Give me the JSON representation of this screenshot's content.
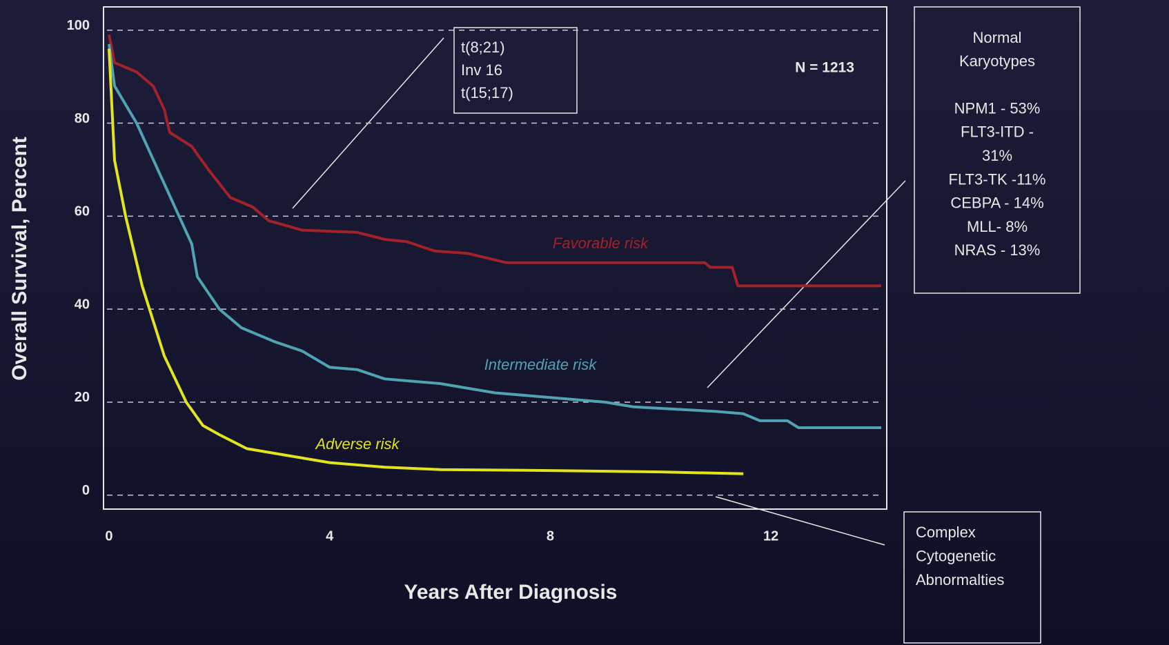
{
  "chart_data": {
    "type": "line",
    "xlabel": "Years After Diagnosis",
    "ylabel": "Overall Survival, Percent",
    "xlim": [
      -0.1,
      14.1
    ],
    "ylim": [
      -3,
      105
    ],
    "xticks": [
      0,
      4,
      8,
      12
    ],
    "yticks": [
      0,
      20,
      40,
      60,
      80,
      100
    ],
    "grid": true,
    "series": [
      {
        "name": "Favorable risk",
        "color": "#a3222a",
        "x": [
          0,
          0.1,
          0.5,
          0.8,
          1.0,
          1.1,
          1.5,
          1.8,
          2.0,
          2.2,
          2.6,
          2.9,
          3.5,
          4.5,
          5.0,
          5.4,
          5.9,
          6.5,
          7.2,
          8.0,
          10.8,
          10.9,
          11.3,
          11.4,
          14.0
        ],
        "values": [
          99,
          93,
          91,
          88,
          83,
          78,
          75,
          70,
          67,
          64,
          62,
          59,
          57,
          56.5,
          55,
          54.5,
          52.5,
          52,
          50,
          50,
          50,
          49,
          49,
          45,
          45
        ]
      },
      {
        "name": "Intermediate risk",
        "color": "#4fa3b3",
        "x": [
          0,
          0.1,
          0.5,
          1.0,
          1.5,
          1.6,
          2.0,
          2.4,
          3.0,
          3.5,
          4.0,
          4.5,
          5.0,
          6.0,
          7.0,
          8.0,
          9.0,
          9.5,
          11.0,
          11.5,
          11.8,
          12.3,
          12.5,
          14.0
        ],
        "values": [
          97,
          88,
          80,
          67,
          54,
          47,
          40,
          36,
          33,
          31,
          27.5,
          27,
          25,
          24,
          22,
          21,
          20,
          19,
          18,
          17.5,
          16,
          16,
          14.5,
          14.5
        ]
      },
      {
        "name": "Adverse risk",
        "color": "#e3e31e",
        "x": [
          0,
          0.1,
          0.3,
          0.6,
          1.0,
          1.4,
          1.7,
          2.0,
          2.5,
          3.0,
          4.0,
          5.0,
          6.0,
          8.0,
          10.0,
          11.5
        ],
        "values": [
          96,
          72,
          60,
          45,
          30,
          20,
          15,
          13,
          10,
          9,
          7,
          6,
          5.5,
          5.3,
          5,
          4.6
        ]
      }
    ],
    "annotations": [
      {
        "text": "N = 1213"
      },
      {
        "lines": [
          "t(8;21)",
          "Inv 16",
          "t(15;17)"
        ]
      },
      {
        "lines": [
          "Normal",
          "Karyotypes",
          "NPM1 - 53%",
          "FLT3-ITD -",
          "31%",
          "FLT3-TK -11%",
          "CEBPA - 14%",
          "MLL- 8%",
          "NRAS - 13%"
        ]
      },
      {
        "lines": [
          "Complex",
          "Cytogenetic",
          "Abnormalties"
        ]
      }
    ]
  }
}
